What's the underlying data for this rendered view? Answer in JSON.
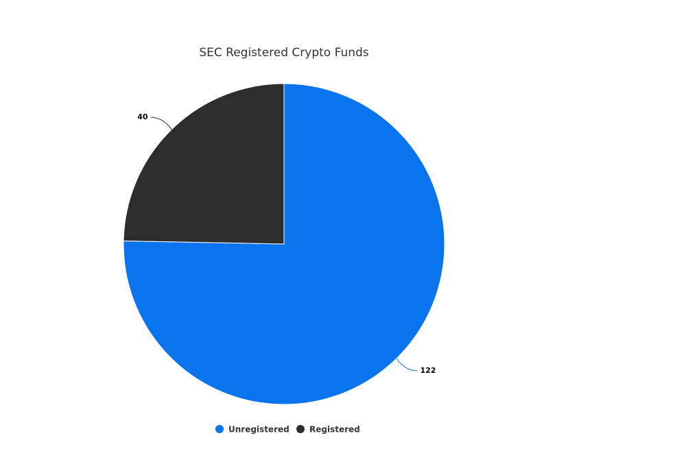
{
  "chart_data": {
    "type": "pie",
    "title": "SEC Registered Crypto Funds",
    "categories": [
      "Unregistered",
      "Registered"
    ],
    "values": [
      122,
      40
    ],
    "colors": [
      "#0a73ee",
      "#2d2d2d"
    ],
    "legend": "bottom"
  }
}
